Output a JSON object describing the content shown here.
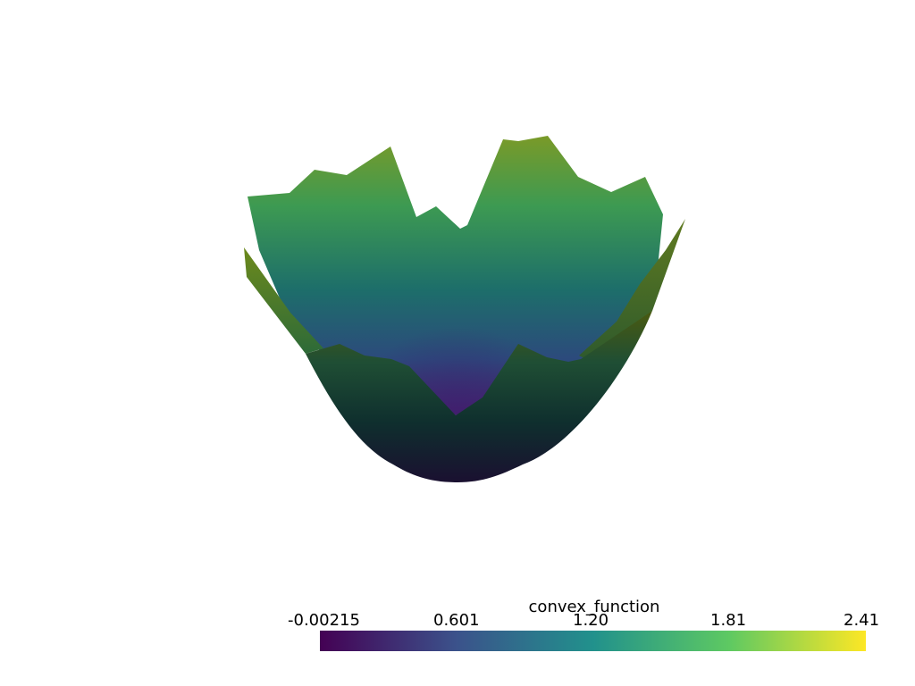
{
  "scene": {
    "background": "#ffffff",
    "surface_name": "convex_function",
    "surface_shape": "paraboloid bowl with jagged rim"
  },
  "colorbar": {
    "title": "convex_function",
    "colormap": "viridis",
    "range": [
      -0.00215,
      2.41
    ],
    "ticks": [
      {
        "label": "-0.00215",
        "value": -0.00215
      },
      {
        "label": "0.601",
        "value": 0.601
      },
      {
        "label": "1.20",
        "value": 1.2
      },
      {
        "label": "1.81",
        "value": 1.81
      },
      {
        "label": "2.41",
        "value": 2.41
      }
    ],
    "colors": [
      "#440154",
      "#3b528b",
      "#21918c",
      "#5ec962",
      "#fde725"
    ]
  }
}
